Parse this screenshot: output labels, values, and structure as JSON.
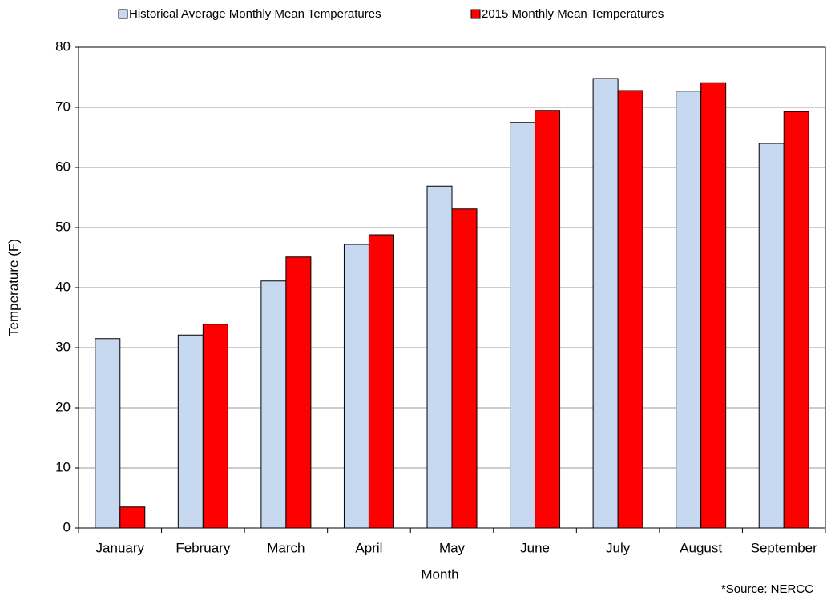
{
  "chart_data": {
    "type": "bar",
    "x_label": "Month",
    "y_label": "Temperature (F)",
    "note": "*Source:  NERCC",
    "categories": [
      "January",
      "February",
      "March",
      "April",
      "May",
      "June",
      "July",
      "August",
      "September"
    ],
    "series": [
      {
        "name": "Historical Average Monthly Mean Temperatures",
        "color": "#c6d9f1",
        "values": [
          31.5,
          32.1,
          41.1,
          47.2,
          56.9,
          67.5,
          74.8,
          72.7,
          64.0
        ]
      },
      {
        "name": "2015 Monthly Mean Temperatures",
        "color": "#ff0000",
        "values": [
          3.5,
          33.9,
          45.1,
          48.8,
          53.1,
          69.5,
          72.8,
          74.1,
          69.3
        ]
      }
    ],
    "ylim": [
      0,
      80
    ],
    "yticks": [
      0,
      10,
      20,
      30,
      40,
      50,
      60,
      70,
      80
    ],
    "grid": true
  }
}
